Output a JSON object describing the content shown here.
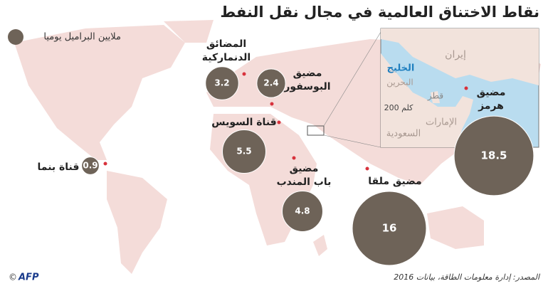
{
  "title": "نقاط الاختناق العالمية في مجال نقل النفط",
  "legend": {
    "label": "ملايين البراميل يوميا"
  },
  "chokepoints": [
    {
      "name": [
        "المضائق",
        "الدنماركية"
      ],
      "value": 3.2
    },
    {
      "name": [
        "مضيق",
        "البوسفور"
      ],
      "value": 2.4
    },
    {
      "name": [
        "قناة السويس"
      ],
      "value": 5.5
    },
    {
      "name": [
        "مضيق",
        "باب المندب"
      ],
      "value": 4.8
    },
    {
      "name": [
        "قناة بنما"
      ],
      "value": 0.9
    },
    {
      "name": [
        "مضيق ملقا"
      ],
      "value": 16
    },
    {
      "name": [
        "مضيق",
        "هرمز"
      ],
      "value": 18.5
    }
  ],
  "inset_labels": [
    "إيران",
    "الخليج",
    "البحرين",
    "قطر",
    "الإمارات",
    "السعودية",
    "200 كلم"
  ],
  "source": "المصدر: إدارة معلومات الطاقة، بيانات 2016",
  "credit": {
    "symbol": "©",
    "logo": "AFP"
  }
}
